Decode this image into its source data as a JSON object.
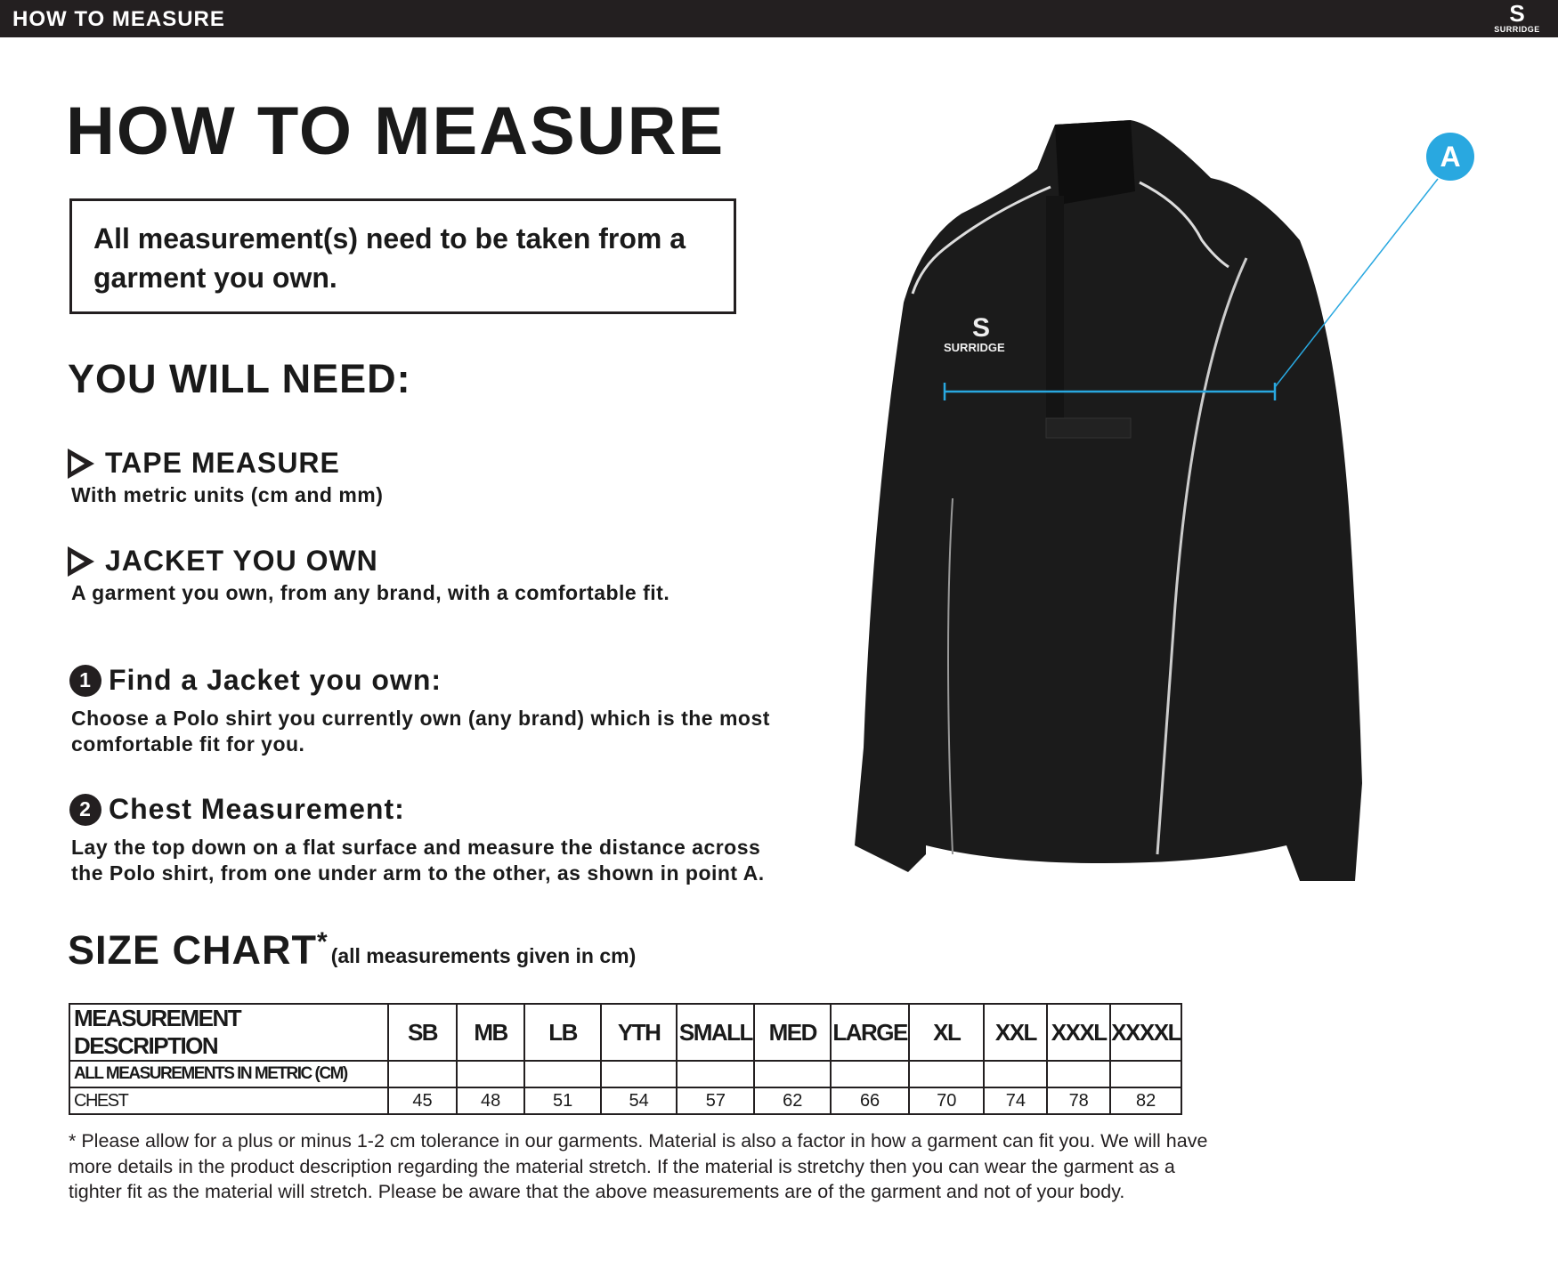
{
  "topbar": {
    "title": "HOW TO MEASURE",
    "logo_text": "SURRIDGE"
  },
  "page_title": "HOW TO MEASURE",
  "notice": "All measurement(s) need to be taken from a garment you own.",
  "need": {
    "heading": "YOU WILL NEED:",
    "items": [
      {
        "title": "TAPE MEASURE",
        "subtitle": "With metric units (cm and mm)"
      },
      {
        "title": "JACKET YOU OWN",
        "subtitle": "A garment you own, from any brand, with a comfortable fit."
      }
    ]
  },
  "steps": [
    {
      "number": "1",
      "title": "Find a Jacket you own:",
      "lines": [
        "Choose a Polo shirt you currently own (any brand) which is the most",
        "comfortable fit for you."
      ]
    },
    {
      "number": "2",
      "title": "Chest Measurement:",
      "lines": [
        "Lay the top down on a flat surface and measure the distance across",
        "the Polo shirt, from one under arm to the other, as shown in point A."
      ]
    }
  ],
  "diagram": {
    "point_label": "A",
    "accent": "#29a8e0",
    "garment_logo": "SURRIDGE"
  },
  "size_chart": {
    "heading": "SIZE CHART",
    "asterisk": "*",
    "note": "(all measurements given in cm)",
    "headers": [
      "MEASUREMENT DESCRIPTION",
      "SB",
      "MB",
      "LB",
      "YTH",
      "SMALL",
      "MED",
      "LARGE",
      "XL",
      "XXL",
      "XXXL",
      "XXXXL"
    ],
    "subheader": "ALL MEASUREMENTS IN METRIC (CM)",
    "rows": [
      {
        "label": "CHEST",
        "values": [
          "45",
          "48",
          "51",
          "54",
          "57",
          "62",
          "66",
          "70",
          "74",
          "78",
          "82"
        ]
      }
    ]
  },
  "footnote": [
    "* Please allow for a plus or minus 1-2 cm tolerance in our garments. Material is also a factor in how a garment can fit you. We will have",
    "more details in the product description regarding the material stretch.  If the material is stretchy then you can wear the garment as a",
    "tighter fit as the material will stretch.  Please be aware that the above measurements are of the garment and not of your body."
  ]
}
